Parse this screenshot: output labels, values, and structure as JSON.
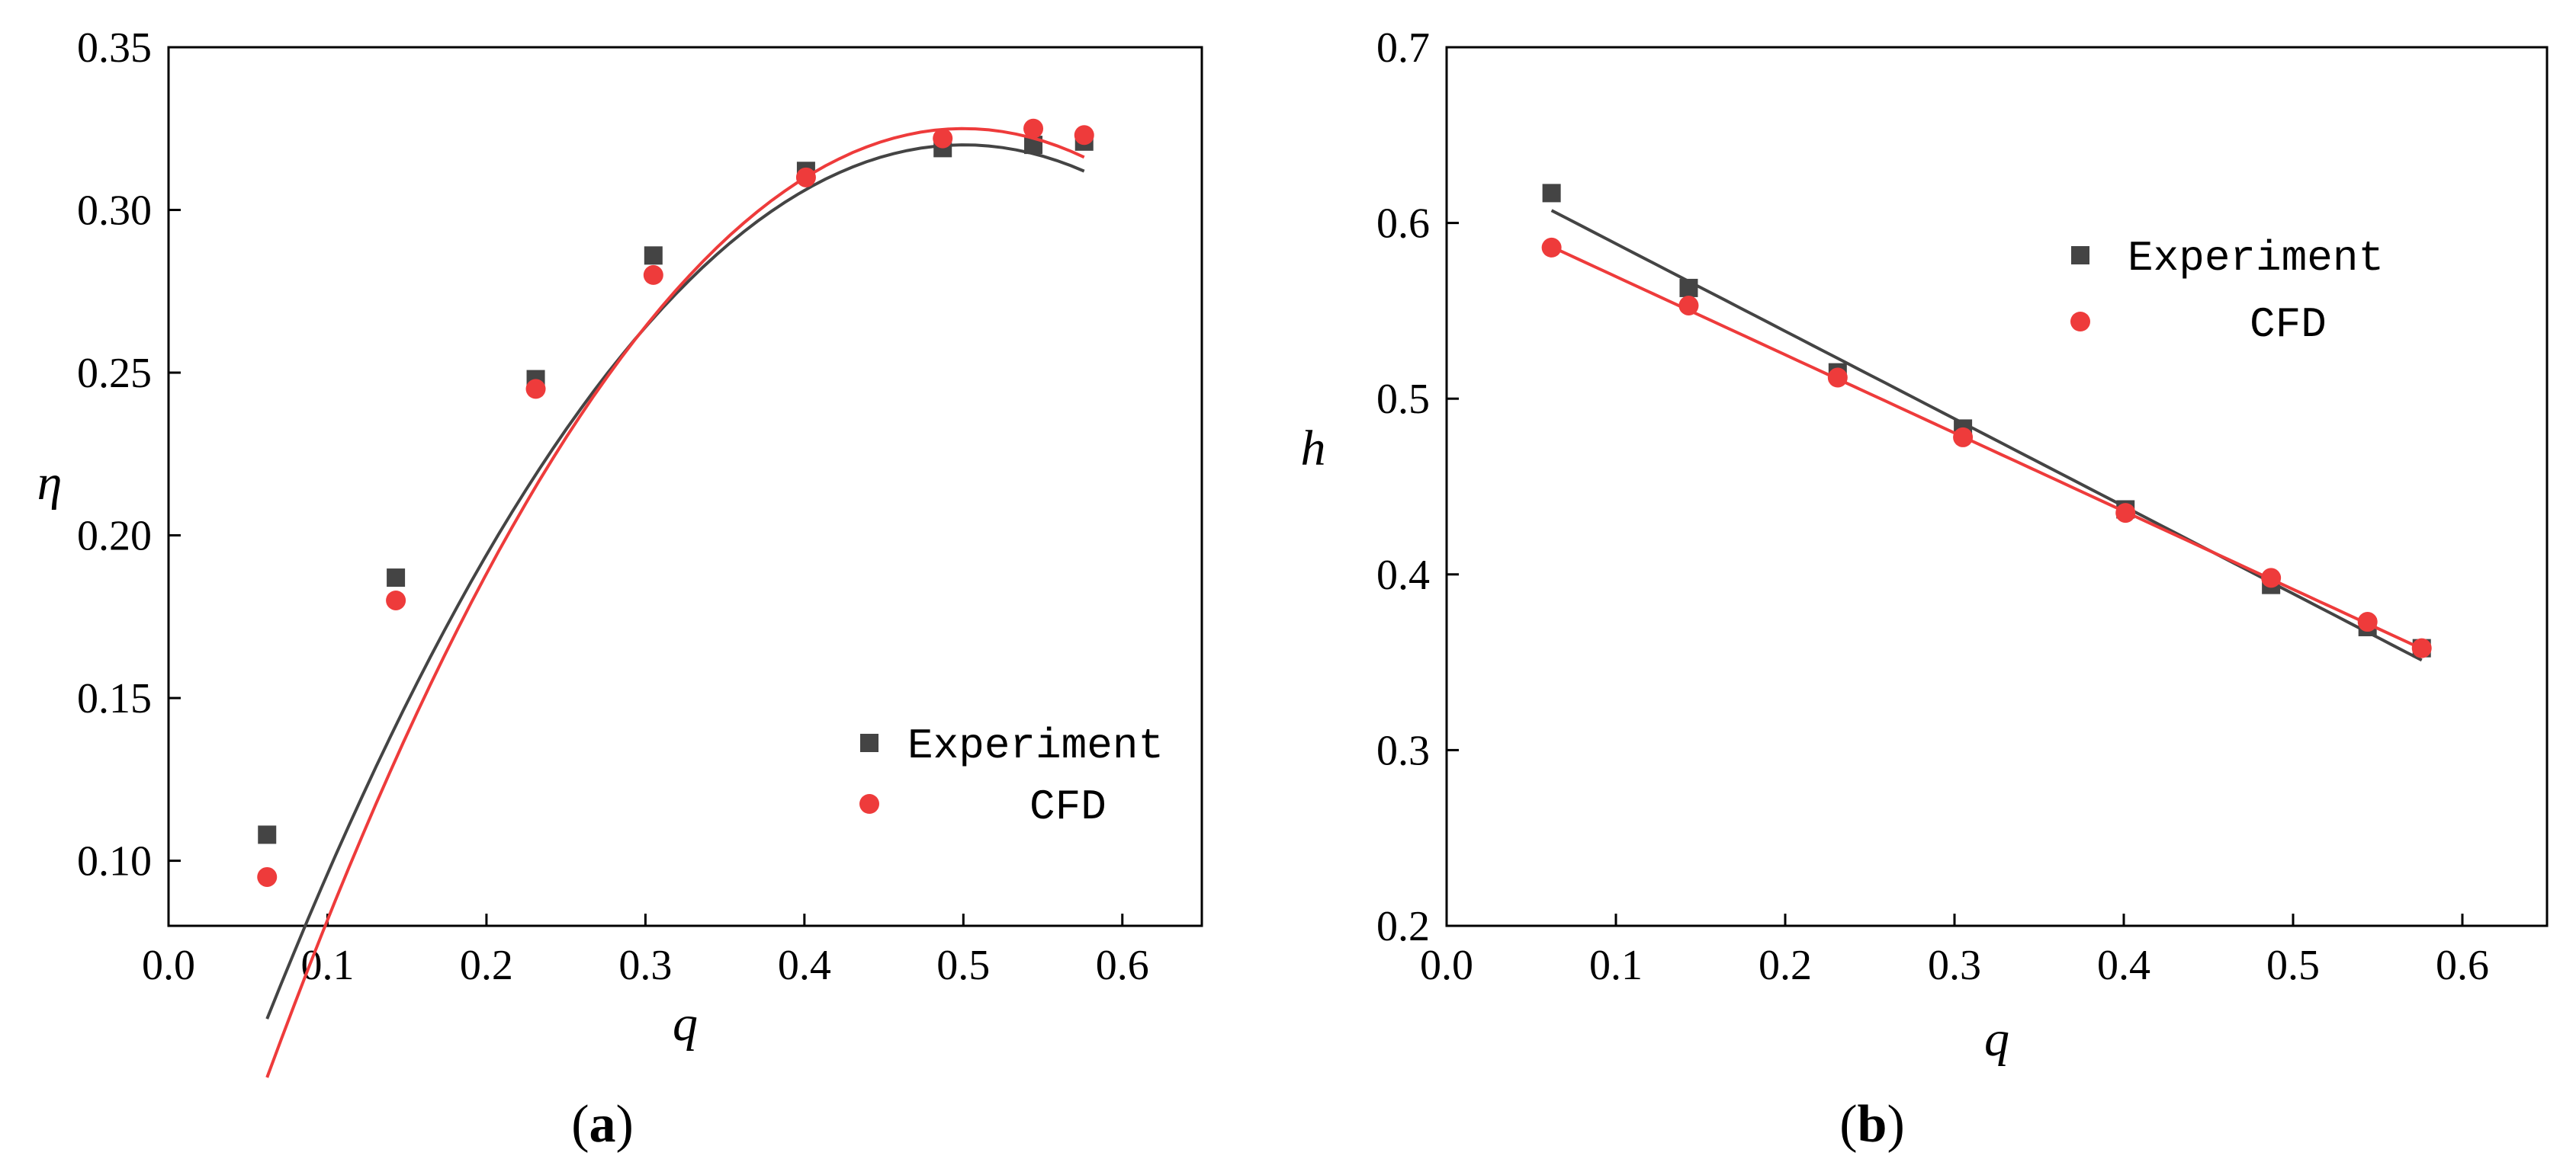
{
  "colors": {
    "experiment": "#444444",
    "cfd": "#ee3b3b",
    "axis": "#000000",
    "background": "#ffffff"
  },
  "chart_data": [
    {
      "type": "scatter",
      "panel_label": {
        "open": "(",
        "letter": "a",
        "close": ")"
      },
      "xlabel": "q",
      "ylabel": "η",
      "xlim": [
        0.0,
        0.65
      ],
      "ylim": [
        0.08,
        0.35
      ],
      "xticks": [
        0.0,
        0.1,
        0.2,
        0.3,
        0.4,
        0.5,
        0.6
      ],
      "xtick_labels": [
        "0.0",
        "0.1",
        "0.2",
        "0.3",
        "0.4",
        "0.5",
        "0.6"
      ],
      "yticks": [
        0.1,
        0.15,
        0.2,
        0.25,
        0.3,
        0.35
      ],
      "ytick_labels": [
        "0.10",
        "0.15",
        "0.20",
        "0.25",
        "0.30",
        "0.35"
      ],
      "grid": false,
      "legend": {
        "position": "bottom-right",
        "entries": [
          "Experiment",
          "CFD"
        ]
      },
      "series": [
        {
          "name": "Experiment",
          "marker": "square",
          "x": [
            0.062,
            0.143,
            0.231,
            0.305,
            0.401,
            0.487,
            0.544,
            0.576
          ],
          "y": [
            0.108,
            0.187,
            0.248,
            0.286,
            0.312,
            0.319,
            0.32,
            0.321
          ],
          "fit_x": [
            0.062,
            0.576
          ],
          "fit_quadratic": [
            -0.03,
            1.4,
            -1.4
          ]
        },
        {
          "name": "CFD",
          "marker": "circle",
          "x": [
            0.062,
            0.143,
            0.231,
            0.305,
            0.401,
            0.487,
            0.544,
            0.576
          ],
          "y": [
            0.095,
            0.18,
            0.245,
            0.28,
            0.31,
            0.322,
            0.325,
            0.323
          ],
          "fit_x": [
            0.062,
            0.576
          ],
          "fit_quadratic": [
            -0.055,
            1.52,
            -1.52
          ]
        }
      ]
    },
    {
      "type": "scatter",
      "panel_label": {
        "open": "(",
        "letter": "b",
        "close": ")"
      },
      "xlabel": "q",
      "ylabel": "h",
      "xlim": [
        0.0,
        0.65
      ],
      "ylim": [
        0.2,
        0.7
      ],
      "xticks": [
        0.0,
        0.1,
        0.2,
        0.3,
        0.4,
        0.5,
        0.6
      ],
      "xtick_labels": [
        "0.0",
        "0.1",
        "0.2",
        "0.3",
        "0.4",
        "0.5",
        "0.6"
      ],
      "yticks": [
        0.2,
        0.3,
        0.4,
        0.5,
        0.6,
        0.7
      ],
      "ytick_labels": [
        "0.2",
        "0.3",
        "0.4",
        "0.5",
        "0.6",
        "0.7"
      ],
      "grid": false,
      "legend": {
        "position": "top-right",
        "entries": [
          "Experiment",
          "CFD"
        ]
      },
      "series": [
        {
          "name": "Experiment",
          "marker": "square",
          "x": [
            0.062,
            0.143,
            0.231,
            0.305,
            0.401,
            0.487,
            0.544,
            0.576
          ],
          "y": [
            0.617,
            0.563,
            0.515,
            0.483,
            0.437,
            0.394,
            0.37,
            0.358
          ],
          "fit_x": [
            0.062,
            0.576
          ],
          "fit_linear": [
            0.638,
            -0.498
          ]
        },
        {
          "name": "CFD",
          "marker": "circle",
          "x": [
            0.062,
            0.143,
            0.231,
            0.305,
            0.401,
            0.487,
            0.544,
            0.576
          ],
          "y": [
            0.586,
            0.553,
            0.512,
            0.478,
            0.435,
            0.398,
            0.373,
            0.358
          ],
          "fit_x": [
            0.062,
            0.576
          ],
          "fit_linear": [
            0.614,
            -0.445
          ]
        }
      ]
    }
  ]
}
